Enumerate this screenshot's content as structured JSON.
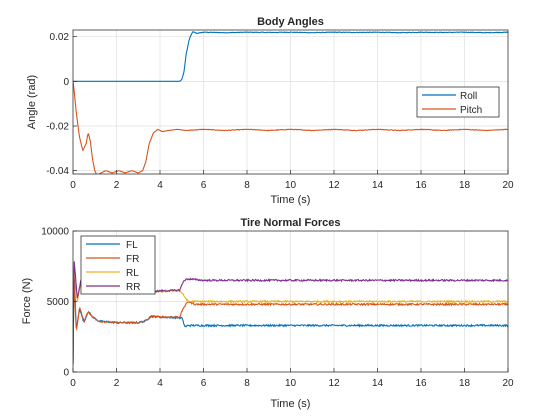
{
  "chart_data": [
    {
      "type": "line",
      "title": "Body Angles",
      "xlabel": "Time (s)",
      "ylabel": "Angle (rad)",
      "xlim": [
        0,
        20
      ],
      "ylim": [
        -0.0415,
        0.023
      ],
      "xticks": [
        0,
        2,
        4,
        6,
        8,
        10,
        12,
        14,
        16,
        18,
        20
      ],
      "xtick_labels": [
        "0",
        "2",
        "4",
        "6",
        "8",
        "10",
        "12",
        "14",
        "16",
        "18",
        "20"
      ],
      "yticks": [
        -0.04,
        -0.02,
        0,
        0.02
      ],
      "ytick_labels": [
        "-0.04",
        "-0.02",
        "0",
        "0.02"
      ],
      "grid": true,
      "legend": "right",
      "series": [
        {
          "name": "Roll",
          "color": "#0072BD",
          "points": [
            [
              0,
              0
            ],
            [
              1,
              0
            ],
            [
              2,
              0
            ],
            [
              3,
              0
            ],
            [
              4,
              0
            ],
            [
              4.9,
              0
            ],
            [
              5.0,
              0.0008
            ],
            [
              5.1,
              0.004
            ],
            [
              5.2,
              0.012
            ],
            [
              5.35,
              0.019
            ],
            [
              5.5,
              0.0222
            ],
            [
              5.7,
              0.0215
            ],
            [
              6,
              0.022
            ],
            [
              7,
              0.0218
            ],
            [
              8,
              0.022
            ],
            [
              9,
              0.0219
            ],
            [
              10,
              0.022
            ],
            [
              11,
              0.0218
            ],
            [
              12,
              0.022
            ],
            [
              13,
              0.0219
            ],
            [
              14,
              0.022
            ],
            [
              15,
              0.0218
            ],
            [
              16,
              0.022
            ],
            [
              17,
              0.0219
            ],
            [
              18,
              0.022
            ],
            [
              19,
              0.0218
            ],
            [
              20,
              0.022
            ]
          ]
        },
        {
          "name": "Pitch",
          "color": "#D95319",
          "points": [
            [
              0,
              0
            ],
            [
              0.05,
              -0.004
            ],
            [
              0.15,
              -0.014
            ],
            [
              0.3,
              -0.025
            ],
            [
              0.45,
              -0.031
            ],
            [
              0.6,
              -0.028
            ],
            [
              0.7,
              -0.023
            ],
            [
              0.8,
              -0.027
            ],
            [
              0.9,
              -0.035
            ],
            [
              1.0,
              -0.04
            ],
            [
              1.1,
              -0.042
            ],
            [
              1.3,
              -0.041
            ],
            [
              1.5,
              -0.04
            ],
            [
              1.8,
              -0.041
            ],
            [
              2.1,
              -0.04
            ],
            [
              2.4,
              -0.041
            ],
            [
              2.7,
              -0.04
            ],
            [
              3.0,
              -0.041
            ],
            [
              3.2,
              -0.04
            ],
            [
              3.35,
              -0.036
            ],
            [
              3.5,
              -0.028
            ],
            [
              3.7,
              -0.023
            ],
            [
              3.9,
              -0.0215
            ],
            [
              4.1,
              -0.0225
            ],
            [
              4.4,
              -0.022
            ],
            [
              4.8,
              -0.0215
            ],
            [
              5.2,
              -0.022
            ],
            [
              6,
              -0.0215
            ],
            [
              7,
              -0.022
            ],
            [
              8,
              -0.0215
            ],
            [
              9,
              -0.022
            ],
            [
              10,
              -0.0215
            ],
            [
              11,
              -0.022
            ],
            [
              12,
              -0.0215
            ],
            [
              13,
              -0.022
            ],
            [
              14,
              -0.0215
            ],
            [
              15,
              -0.022
            ],
            [
              16,
              -0.0215
            ],
            [
              17,
              -0.022
            ],
            [
              18,
              -0.0215
            ],
            [
              19,
              -0.022
            ],
            [
              20,
              -0.0215
            ]
          ]
        }
      ]
    },
    {
      "type": "line",
      "title": "Tire Normal Forces",
      "xlabel": "Time (s)",
      "ylabel": "Force (N)",
      "xlim": [
        0,
        20
      ],
      "ylim": [
        0,
        10000
      ],
      "xticks": [
        0,
        2,
        4,
        6,
        8,
        10,
        12,
        14,
        16,
        18,
        20
      ],
      "xtick_labels": [
        "0",
        "2",
        "4",
        "6",
        "8",
        "10",
        "12",
        "14",
        "16",
        "18",
        "20"
      ],
      "yticks": [
        0,
        5000,
        10000
      ],
      "ytick_labels": [
        "0",
        "5000",
        "10000"
      ],
      "grid": true,
      "legend": "top-left",
      "series": [
        {
          "name": "FL",
          "color": "#0072BD",
          "points": [
            [
              0,
              500
            ],
            [
              0.05,
              7500
            ],
            [
              0.15,
              3000
            ],
            [
              0.3,
              4500
            ],
            [
              0.5,
              3500
            ],
            [
              0.7,
              4300
            ],
            [
              0.9,
              3900
            ],
            [
              1.2,
              3600
            ],
            [
              2,
              3500
            ],
            [
              3,
              3500
            ],
            [
              3.3,
              3600
            ],
            [
              3.6,
              3950
            ],
            [
              4.0,
              3900
            ],
            [
              4.9,
              3850
            ],
            [
              5.0,
              3850
            ],
            [
              5.15,
              3200
            ],
            [
              5.3,
              3300
            ],
            [
              6,
              3300
            ],
            [
              8,
              3300
            ],
            [
              10,
              3300
            ],
            [
              12,
              3300
            ],
            [
              14,
              3300
            ],
            [
              16,
              3300
            ],
            [
              18,
              3300
            ],
            [
              20,
              3300
            ]
          ]
        },
        {
          "name": "FR",
          "color": "#D95319",
          "points": [
            [
              0,
              500
            ],
            [
              0.05,
              7000
            ],
            [
              0.15,
              2800
            ],
            [
              0.3,
              4600
            ],
            [
              0.5,
              3600
            ],
            [
              0.7,
              4300
            ],
            [
              0.9,
              3900
            ],
            [
              1.2,
              3600
            ],
            [
              2,
              3500
            ],
            [
              3,
              3500
            ],
            [
              3.3,
              3600
            ],
            [
              3.6,
              3950
            ],
            [
              4.0,
              3900
            ],
            [
              4.9,
              3900
            ],
            [
              5.1,
              4600
            ],
            [
              5.3,
              5000
            ],
            [
              5.6,
              4800
            ],
            [
              6,
              4800
            ],
            [
              8,
              4800
            ],
            [
              10,
              4800
            ],
            [
              12,
              4800
            ],
            [
              14,
              4800
            ],
            [
              16,
              4800
            ],
            [
              18,
              4800
            ],
            [
              20,
              4800
            ]
          ]
        },
        {
          "name": "RL",
          "color": "#EDB120",
          "points": [
            [
              0,
              500
            ],
            [
              0.05,
              7600
            ],
            [
              0.2,
              5000
            ],
            [
              0.35,
              6200
            ],
            [
              0.5,
              5800
            ],
            [
              0.8,
              6000
            ],
            [
              1.2,
              5800
            ],
            [
              2,
              5750
            ],
            [
              3,
              5750
            ],
            [
              3.5,
              5700
            ],
            [
              4,
              5700
            ],
            [
              4.9,
              5800
            ],
            [
              5.1,
              5400
            ],
            [
              5.3,
              5000
            ],
            [
              6,
              5000
            ],
            [
              8,
              5000
            ],
            [
              10,
              5000
            ],
            [
              12,
              5000
            ],
            [
              14,
              5000
            ],
            [
              16,
              5000
            ],
            [
              18,
              5000
            ],
            [
              20,
              5000
            ]
          ]
        },
        {
          "name": "RR",
          "color": "#7E2F8E",
          "points": [
            [
              0,
              500
            ],
            [
              0.05,
              8000
            ],
            [
              0.2,
              5200
            ],
            [
              0.35,
              6400
            ],
            [
              0.5,
              5800
            ],
            [
              0.8,
              6000
            ],
            [
              1.2,
              5800
            ],
            [
              2,
              5800
            ],
            [
              3,
              5750
            ],
            [
              3.5,
              5700
            ],
            [
              4,
              5750
            ],
            [
              4.9,
              5800
            ],
            [
              5.1,
              6500
            ],
            [
              5.3,
              6600
            ],
            [
              6,
              6500
            ],
            [
              8,
              6500
            ],
            [
              10,
              6500
            ],
            [
              12,
              6500
            ],
            [
              14,
              6500
            ],
            [
              16,
              6500
            ],
            [
              18,
              6500
            ],
            [
              20,
              6500
            ]
          ]
        }
      ]
    }
  ]
}
